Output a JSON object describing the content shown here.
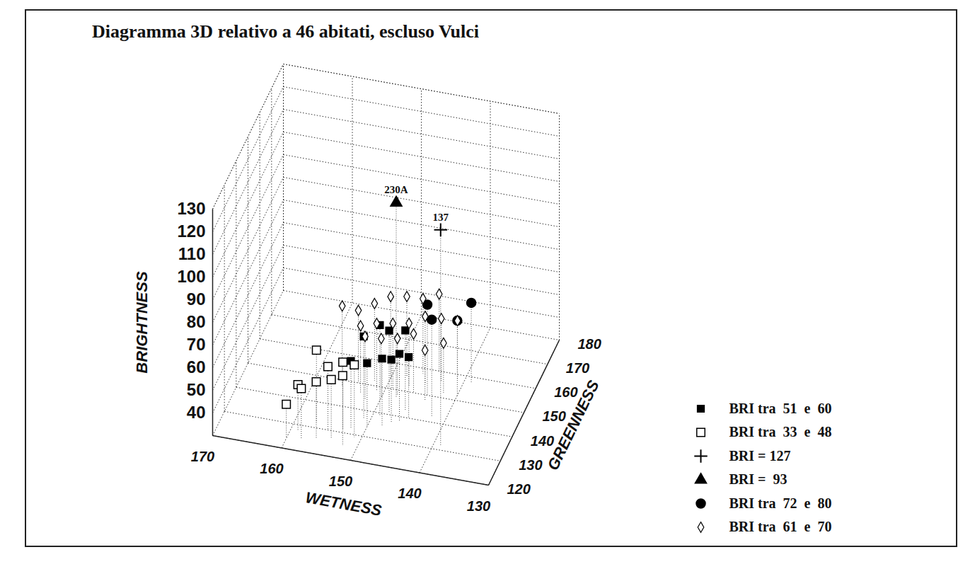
{
  "chart_data": {
    "type": "scatter3d",
    "title": "Diagramma 3D relativo a 46 abitati, escluso Vulci",
    "xlabel": "WETNESS",
    "ylabel": "GREENNESS",
    "zlabel": "BRIGHTNESS",
    "xlim": [
      130,
      170
    ],
    "ylim": [
      120,
      180
    ],
    "zlim": [
      30,
      130
    ],
    "xticks": [
      130,
      140,
      150,
      160,
      170
    ],
    "yticks": [
      120,
      130,
      140,
      150,
      160,
      170,
      180
    ],
    "zticks": [
      40,
      50,
      60,
      70,
      80,
      90,
      100,
      110,
      120,
      130
    ],
    "grid": true,
    "legend": "bottom-right",
    "series": [
      {
        "name": "BRI tra  51  e  60",
        "marker": "square",
        "color": "#000000",
        "x": [
          152,
          151,
          150,
          149,
          148,
          148,
          147,
          146,
          146,
          145
        ],
        "y": [
          132,
          137,
          134,
          139,
          135,
          141,
          137,
          143,
          138,
          140
        ],
        "z": [
          60,
          66,
          58,
          70,
          60,
          66,
          58,
          65,
          60,
          57
        ]
      },
      {
        "name": "BRI tra  33  e  48",
        "marker": "square-open",
        "color": "#000000",
        "x": [
          160,
          159,
          158,
          157,
          156,
          155,
          154,
          153,
          152,
          151
        ],
        "y": [
          124,
          128,
          125,
          132,
          126,
          130,
          127,
          131,
          125,
          129
        ],
        "z": [
          45,
          50,
          52,
          62,
          55,
          58,
          56,
          60,
          61,
          62
        ]
      },
      {
        "name": "BRI = 127",
        "marker": "plus",
        "color": "#000000",
        "x": [
          139
        ],
        "y": [
          132
        ],
        "z": [
          125
        ],
        "point_labels": [
          "137"
        ]
      },
      {
        "name": "BRI =  93",
        "marker": "triangle",
        "color": "#000000",
        "x": [
          148
        ],
        "y": [
          147
        ],
        "z": [
          116
        ],
        "point_labels": [
          "230A"
        ]
      },
      {
        "name": "BRI tra  72  e  80",
        "marker": "circle",
        "color": "#000000",
        "x": [
          144,
          142,
          139,
          140
        ],
        "y": [
          150,
          142,
          158,
          152
        ],
        "z": [
          70,
          73,
          65,
          63
        ]
      },
      {
        "name": "BRI tra  61  e  70",
        "marker": "diamond-open",
        "color": "#000000",
        "x": [
          156,
          154,
          153,
          152,
          152,
          151,
          150,
          150,
          149,
          148,
          148,
          147,
          146,
          146,
          145,
          144,
          144,
          143,
          142,
          141
        ],
        "y": [
          148,
          150,
          146,
          152,
          144,
          148,
          154,
          146,
          150,
          156,
          148,
          152,
          158,
          150,
          154,
          160,
          148,
          156,
          152,
          158
        ],
        "z": [
          65,
          62,
          60,
          64,
          58,
          60,
          66,
          56,
          59,
          65,
          55,
          58,
          63,
          56,
          60,
          64,
          52,
          58,
          52,
          56
        ]
      }
    ]
  }
}
